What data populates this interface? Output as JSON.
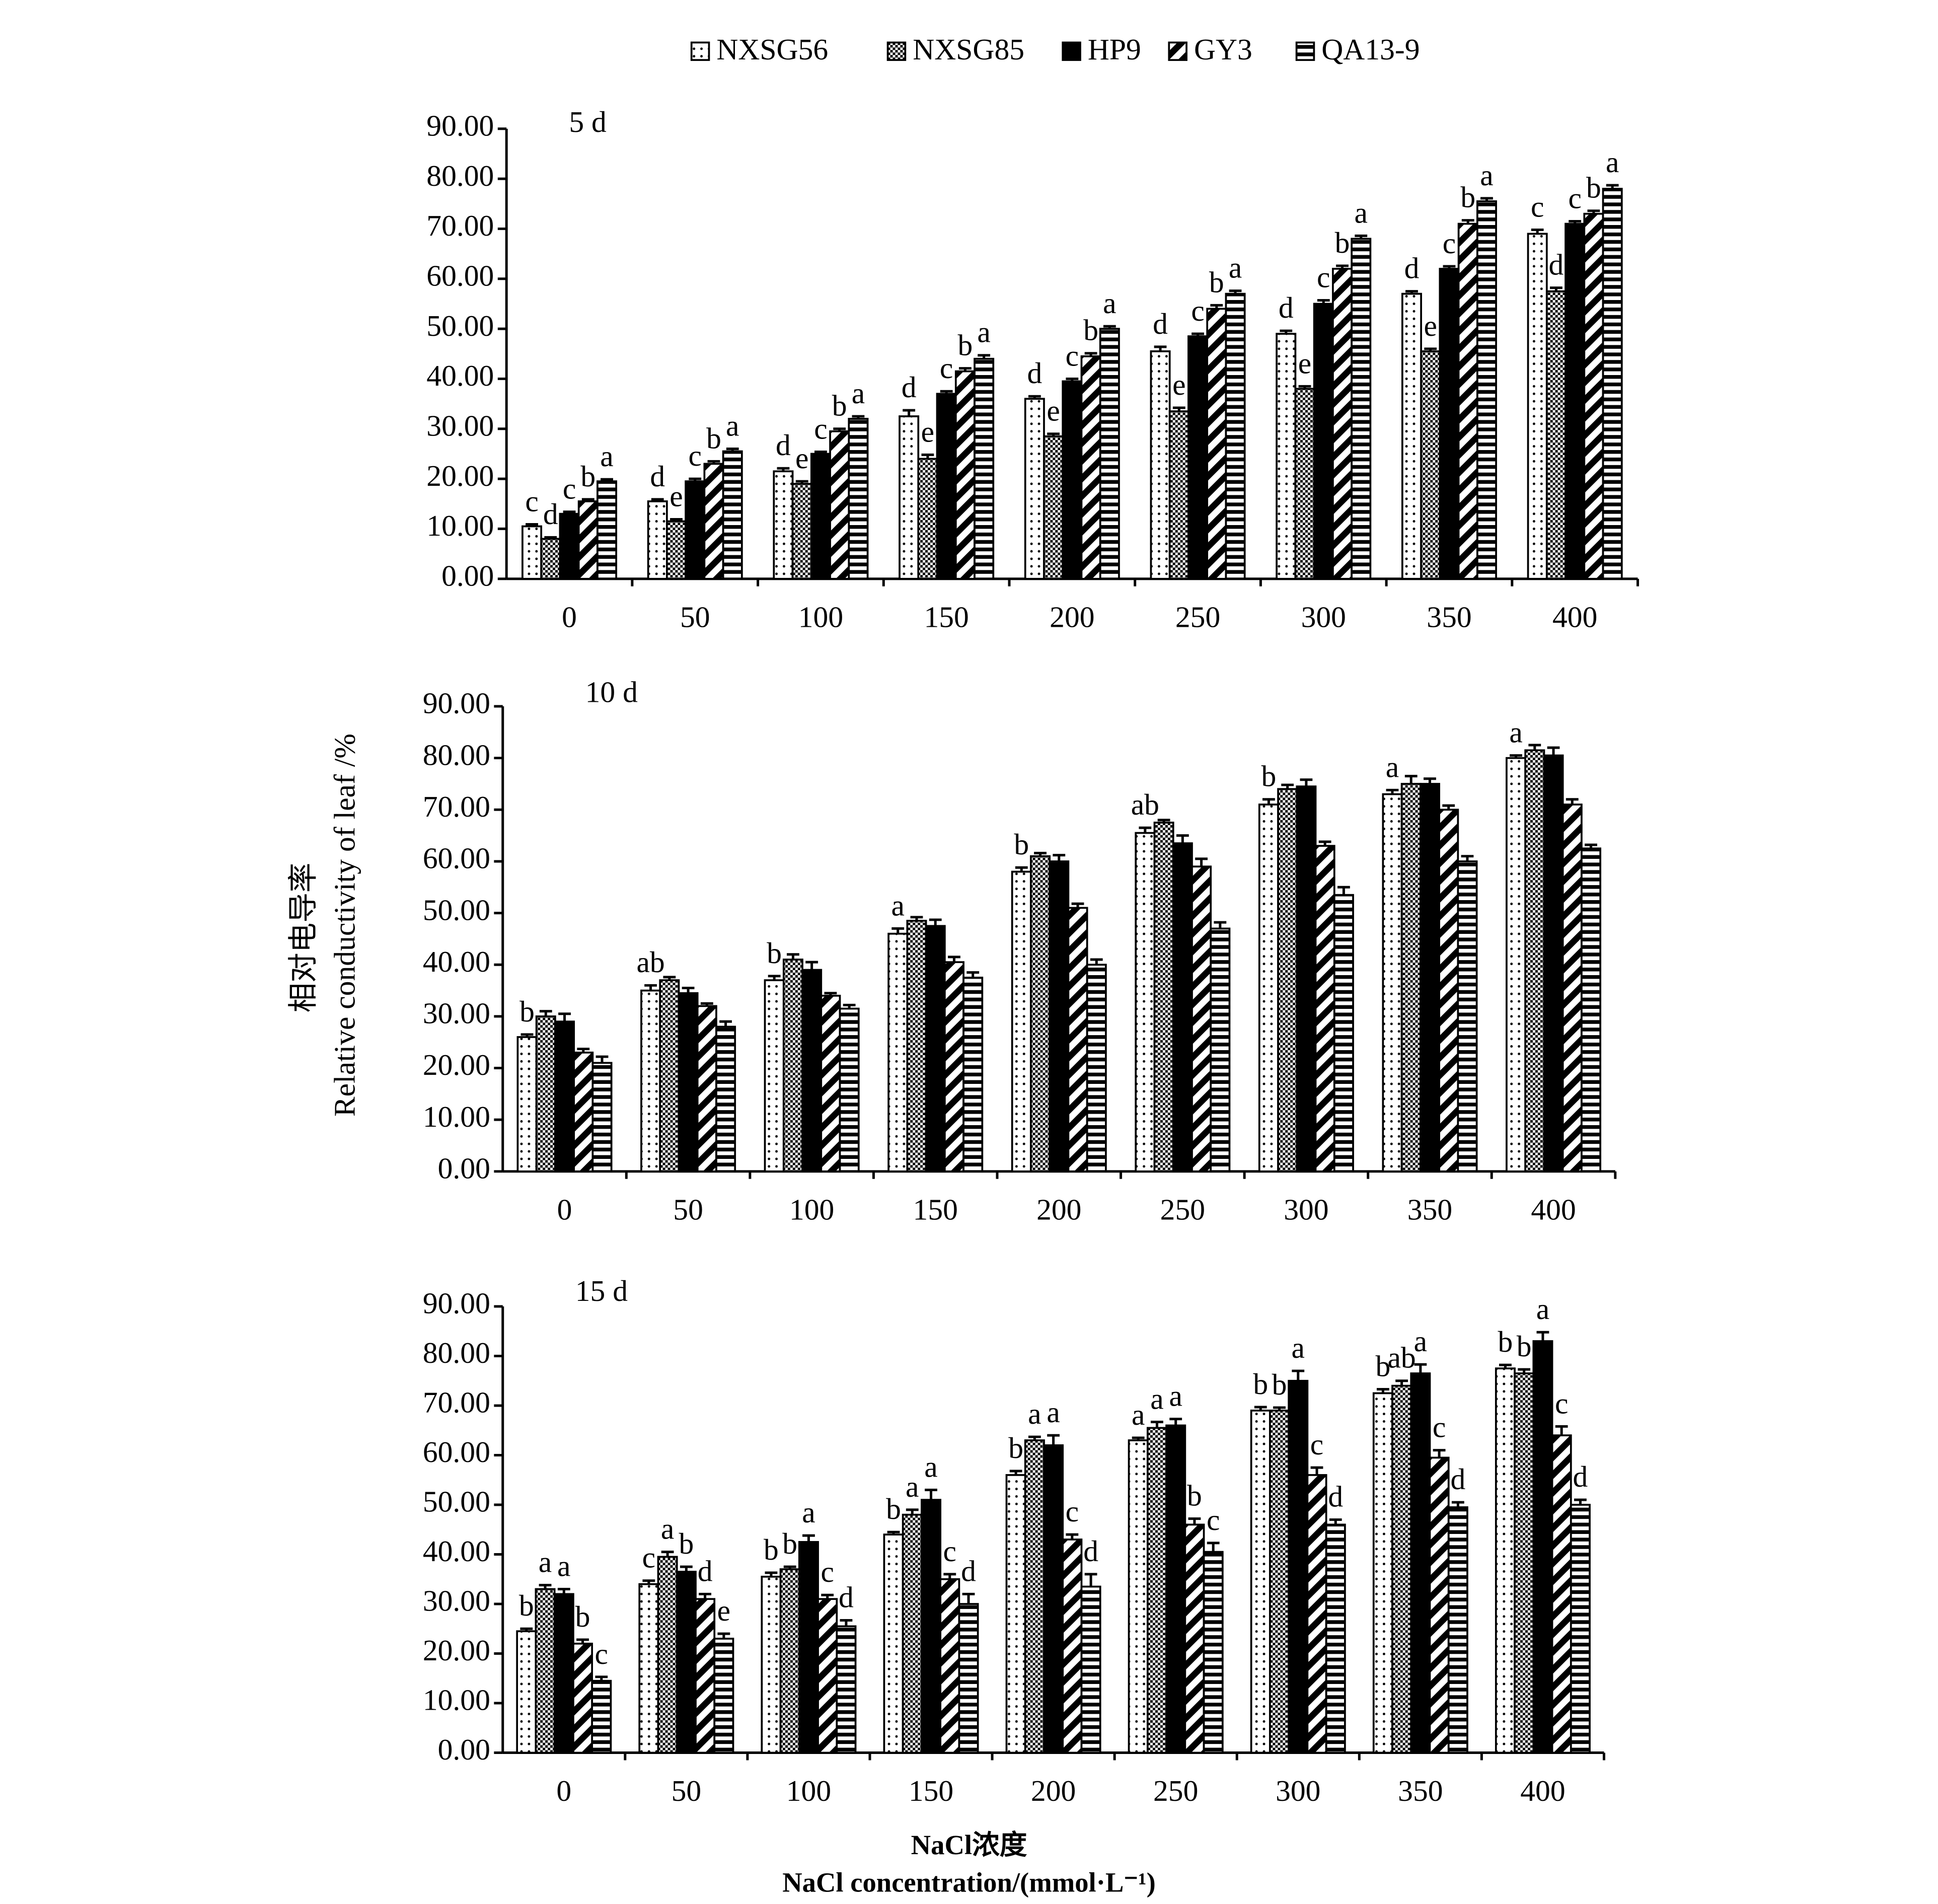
{
  "chart_data": [
    {
      "type": "bar",
      "title": "5 d",
      "categories": [
        "0",
        "50",
        "100",
        "150",
        "200",
        "250",
        "300",
        "350",
        "400"
      ],
      "ylim": [
        0,
        90
      ],
      "yticks": [
        {
          "value": 0,
          "label": "0.00"
        },
        {
          "value": 10,
          "label": "10.00"
        },
        {
          "value": 20,
          "label": "20.00"
        },
        {
          "value": 30,
          "label": "30.00"
        },
        {
          "value": 40,
          "label": "40.00"
        },
        {
          "value": 50,
          "label": "50.00"
        },
        {
          "value": 60,
          "label": "60.00"
        },
        {
          "value": 70,
          "label": "70.00"
        },
        {
          "value": 80,
          "label": "80.00"
        },
        {
          "value": 90,
          "label": "90.00"
        }
      ],
      "series": [
        {
          "name": "NXSG56",
          "color": "#000000",
          "pattern": "dots",
          "values": [
            10.5,
            15.5,
            21.5,
            32.5,
            36,
            45.5,
            49,
            57,
            69
          ],
          "errors": [
            0.4,
            0.4,
            0.6,
            1.2,
            0.5,
            0.9,
            0.6,
            0.5,
            0.8
          ],
          "letters": [
            "c",
            "d",
            "d",
            "d",
            "d",
            "d",
            "d",
            "d",
            "c"
          ]
        },
        {
          "name": "NXSG85",
          "color": "#000000",
          "pattern": "checker",
          "values": [
            8,
            11.5,
            19,
            24,
            28.5,
            33.5,
            38,
            45.5,
            57.5
          ],
          "errors": [
            0.3,
            0.4,
            0.5,
            0.8,
            0.5,
            0.7,
            0.5,
            0.5,
            0.7
          ],
          "letters": [
            "d",
            "e",
            "e",
            "e",
            "e",
            "e",
            "e",
            "e",
            "d"
          ]
        },
        {
          "name": "HP9",
          "color": "#000000",
          "pattern": "solid",
          "values": [
            13,
            19.5,
            25,
            37,
            39.5,
            48.5,
            55,
            62,
            71
          ],
          "errors": [
            0.4,
            0.5,
            0.4,
            0.5,
            0.5,
            0.5,
            0.7,
            0.5,
            0.5
          ],
          "letters": [
            "c",
            "c",
            "c",
            "c",
            "c",
            "c",
            "c",
            "c",
            "c"
          ]
        },
        {
          "name": "GY3",
          "color": "#000000",
          "pattern": "diagonal",
          "values": [
            15.5,
            23,
            29.5,
            41.5,
            44.5,
            54,
            62,
            71,
            73
          ],
          "errors": [
            0.4,
            0.5,
            0.5,
            0.6,
            0.6,
            0.7,
            0.6,
            0.7,
            0.6
          ],
          "letters": [
            "b",
            "b",
            "b",
            "b",
            "b",
            "b",
            "b",
            "b",
            "b"
          ]
        },
        {
          "name": "QA13-9",
          "color": "#000000",
          "pattern": "horizontal",
          "values": [
            19.5,
            25.5,
            32,
            44,
            50,
            57,
            68,
            75.5,
            78
          ],
          "errors": [
            0.4,
            0.5,
            0.5,
            0.7,
            0.5,
            0.6,
            0.6,
            0.6,
            0.7
          ],
          "letters": [
            "a",
            "a",
            "a",
            "a",
            "a",
            "a",
            "a",
            "a",
            "a"
          ]
        }
      ]
    },
    {
      "type": "bar",
      "title": "10 d",
      "categories": [
        "0",
        "50",
        "100",
        "150",
        "200",
        "250",
        "300",
        "350",
        "400"
      ],
      "ylim": [
        0,
        90
      ],
      "yticks": [
        {
          "value": 0,
          "label": "0.00"
        },
        {
          "value": 10,
          "label": "10.00"
        },
        {
          "value": 20,
          "label": "20.00"
        },
        {
          "value": 30,
          "label": "30.00"
        },
        {
          "value": 40,
          "label": "40.00"
        },
        {
          "value": 50,
          "label": "50.00"
        },
        {
          "value": 60,
          "label": "60.00"
        },
        {
          "value": 70,
          "label": "70.00"
        },
        {
          "value": 80,
          "label": "80.00"
        },
        {
          "value": 90,
          "label": "90.00"
        }
      ],
      "series": [
        {
          "color": "#000000",
          "pattern": "dots",
          "values": [
            26,
            35,
            37,
            46,
            58,
            65.5,
            71,
            73,
            80
          ],
          "errors": [
            0.5,
            1,
            0.8,
            1,
            0.8,
            1,
            1,
            0.8,
            0.5
          ],
          "letters": [
            "b",
            "ab",
            "b",
            "a",
            "b",
            "ab",
            "b",
            "a",
            "a"
          ]
        },
        {
          "color": "#000000",
          "pattern": "checker",
          "values": [
            30,
            37,
            41,
            48.5,
            61,
            67.5,
            74,
            75,
            81.5
          ],
          "errors": [
            1,
            0.6,
            1,
            0.7,
            0.6,
            0.5,
            0.8,
            1.5,
            1
          ]
        },
        {
          "color": "#000000",
          "pattern": "solid",
          "values": [
            29,
            34.5,
            39,
            47.5,
            60,
            63.5,
            74.5,
            75,
            80.5
          ],
          "errors": [
            1.5,
            1,
            1.5,
            1.2,
            1.2,
            1.5,
            1.3,
            1,
            1.5
          ]
        },
        {
          "color": "#000000",
          "pattern": "diagonal",
          "values": [
            23,
            32,
            34,
            40.5,
            51,
            59,
            63,
            70,
            71
          ],
          "errors": [
            0.7,
            0.5,
            0.5,
            1,
            0.8,
            1.5,
            0.8,
            0.8,
            1
          ]
        },
        {
          "color": "#000000",
          "pattern": "horizontal",
          "values": [
            21,
            28,
            31.5,
            37.5,
            40,
            47,
            53.5,
            60,
            62.5
          ],
          "errors": [
            1.2,
            1,
            0.7,
            1,
            1,
            1.2,
            1.5,
            1,
            0.7
          ]
        }
      ]
    },
    {
      "type": "bar",
      "title": "15 d",
      "categories": [
        "0",
        "50",
        "100",
        "150",
        "200",
        "250",
        "300",
        "350",
        "400"
      ],
      "ylim": [
        0,
        90
      ],
      "yticks": [
        {
          "value": 0,
          "label": "0.00"
        },
        {
          "value": 10,
          "label": "10.00"
        },
        {
          "value": 20,
          "label": "20.00"
        },
        {
          "value": 30,
          "label": "30.00"
        },
        {
          "value": 40,
          "label": "40.00"
        },
        {
          "value": 50,
          "label": "50.00"
        },
        {
          "value": 60,
          "label": "60.00"
        },
        {
          "value": 70,
          "label": "70.00"
        },
        {
          "value": 80,
          "label": "80.00"
        },
        {
          "value": 90,
          "label": "90.00"
        }
      ],
      "series": [
        {
          "color": "#000000",
          "pattern": "dots",
          "values": [
            24.5,
            34,
            35.5,
            44,
            56,
            63,
            69,
            72.5,
            77.5
          ],
          "errors": [
            0.5,
            0.7,
            0.8,
            0.5,
            0.8,
            0.5,
            0.7,
            0.8,
            0.7
          ],
          "letters": [
            "b",
            "c",
            "b",
            "b",
            "b",
            "a",
            "b",
            "b",
            "b"
          ]
        },
        {
          "color": "#000000",
          "pattern": "checker",
          "values": [
            33,
            39.5,
            37,
            48,
            63,
            65.5,
            69,
            74,
            76.5
          ],
          "errors": [
            0.8,
            1,
            0.5,
            1,
            0.7,
            1.2,
            0.6,
            1,
            0.8
          ],
          "letters": [
            "a",
            "a",
            "b",
            "a",
            "a",
            "a",
            "b",
            "ab",
            "b"
          ]
        },
        {
          "color": "#000000",
          "pattern": "solid",
          "values": [
            32,
            36.5,
            42.5,
            51,
            62,
            66,
            75,
            76.5,
            83
          ],
          "errors": [
            1,
            1,
            1.3,
            2,
            2,
            1.3,
            2,
            1.8,
            1.8
          ],
          "letters": [
            "a",
            "b",
            "a",
            "a",
            "a",
            "a",
            "a",
            "a",
            "a"
          ]
        },
        {
          "color": "#000000",
          "pattern": "diagonal",
          "values": [
            22,
            31,
            31,
            35,
            43,
            46,
            56,
            59.5,
            64
          ],
          "errors": [
            0.8,
            1,
            0.8,
            1,
            1,
            1.2,
            1.5,
            1.5,
            1.8
          ],
          "letters": [
            "b",
            "d",
            "c",
            "c",
            "c",
            "b",
            "c",
            "c",
            "c"
          ]
        },
        {
          "color": "#000000",
          "pattern": "horizontal",
          "values": [
            14.5,
            23,
            25.5,
            30,
            33.5,
            40.5,
            46,
            49.5,
            50
          ],
          "errors": [
            0.8,
            1,
            1.2,
            2,
            2.5,
            1.8,
            1,
            1,
            1
          ],
          "letters": [
            "c",
            "e",
            "d",
            "d",
            "d",
            "c",
            "d",
            "d",
            "d"
          ]
        }
      ]
    }
  ],
  "y_axis_label": {
    "zh": "相对电导率",
    "en": "Relative conductivity of leaf /%"
  },
  "x_axis_label": {
    "zh": "NaCl浓度",
    "en": "NaCl concentration/(mmol·L⁻¹)"
  }
}
